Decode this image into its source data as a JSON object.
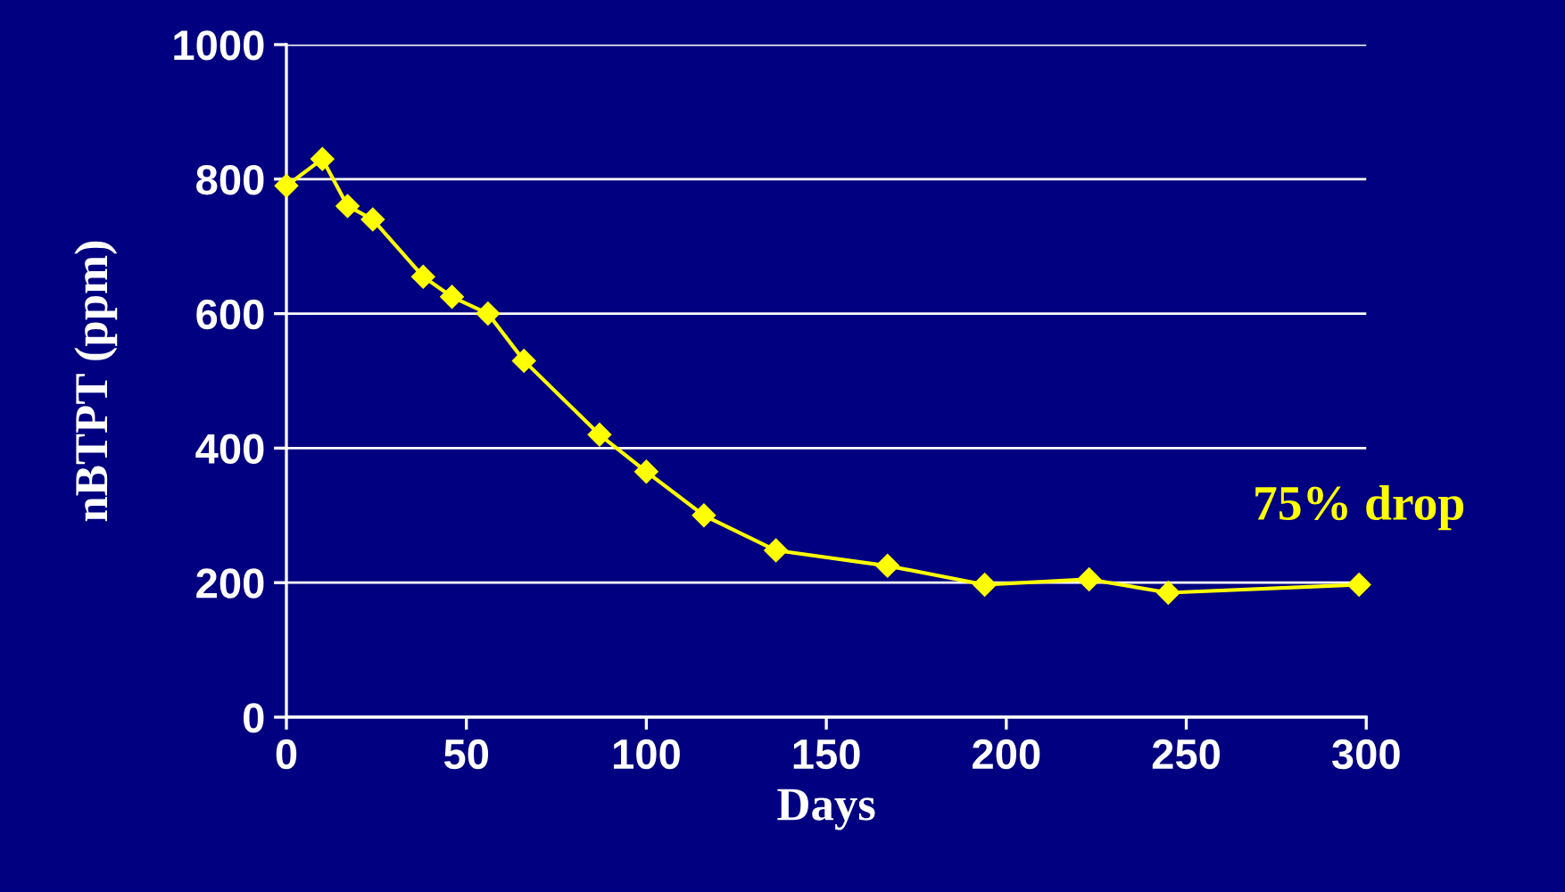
{
  "chart_data": {
    "type": "line",
    "xlabel": "Days",
    "ylabel": "nBTPT (ppm)",
    "x": [
      0,
      10,
      17,
      24,
      38,
      46,
      56,
      66,
      87,
      100,
      116,
      136,
      167,
      194,
      223,
      245,
      298
    ],
    "series": [
      {
        "color": "#ffff00",
        "values": [
          790,
          830,
          760,
          740,
          655,
          625,
          600,
          530,
          420,
          365,
          300,
          248,
          225,
          197,
          205,
          185,
          197
        ]
      }
    ],
    "xlim": [
      0,
      300
    ],
    "xticks": [
      0,
      50,
      100,
      150,
      200,
      250,
      300
    ],
    "ylim": [
      0,
      1000
    ],
    "yticks": [
      0,
      200,
      400,
      600,
      800,
      1000
    ],
    "grid": "y",
    "marker": "diamond",
    "line_style": "solid",
    "annotations": [
      {
        "text": "75% drop",
        "x": 298,
        "y": 197
      }
    ]
  }
}
